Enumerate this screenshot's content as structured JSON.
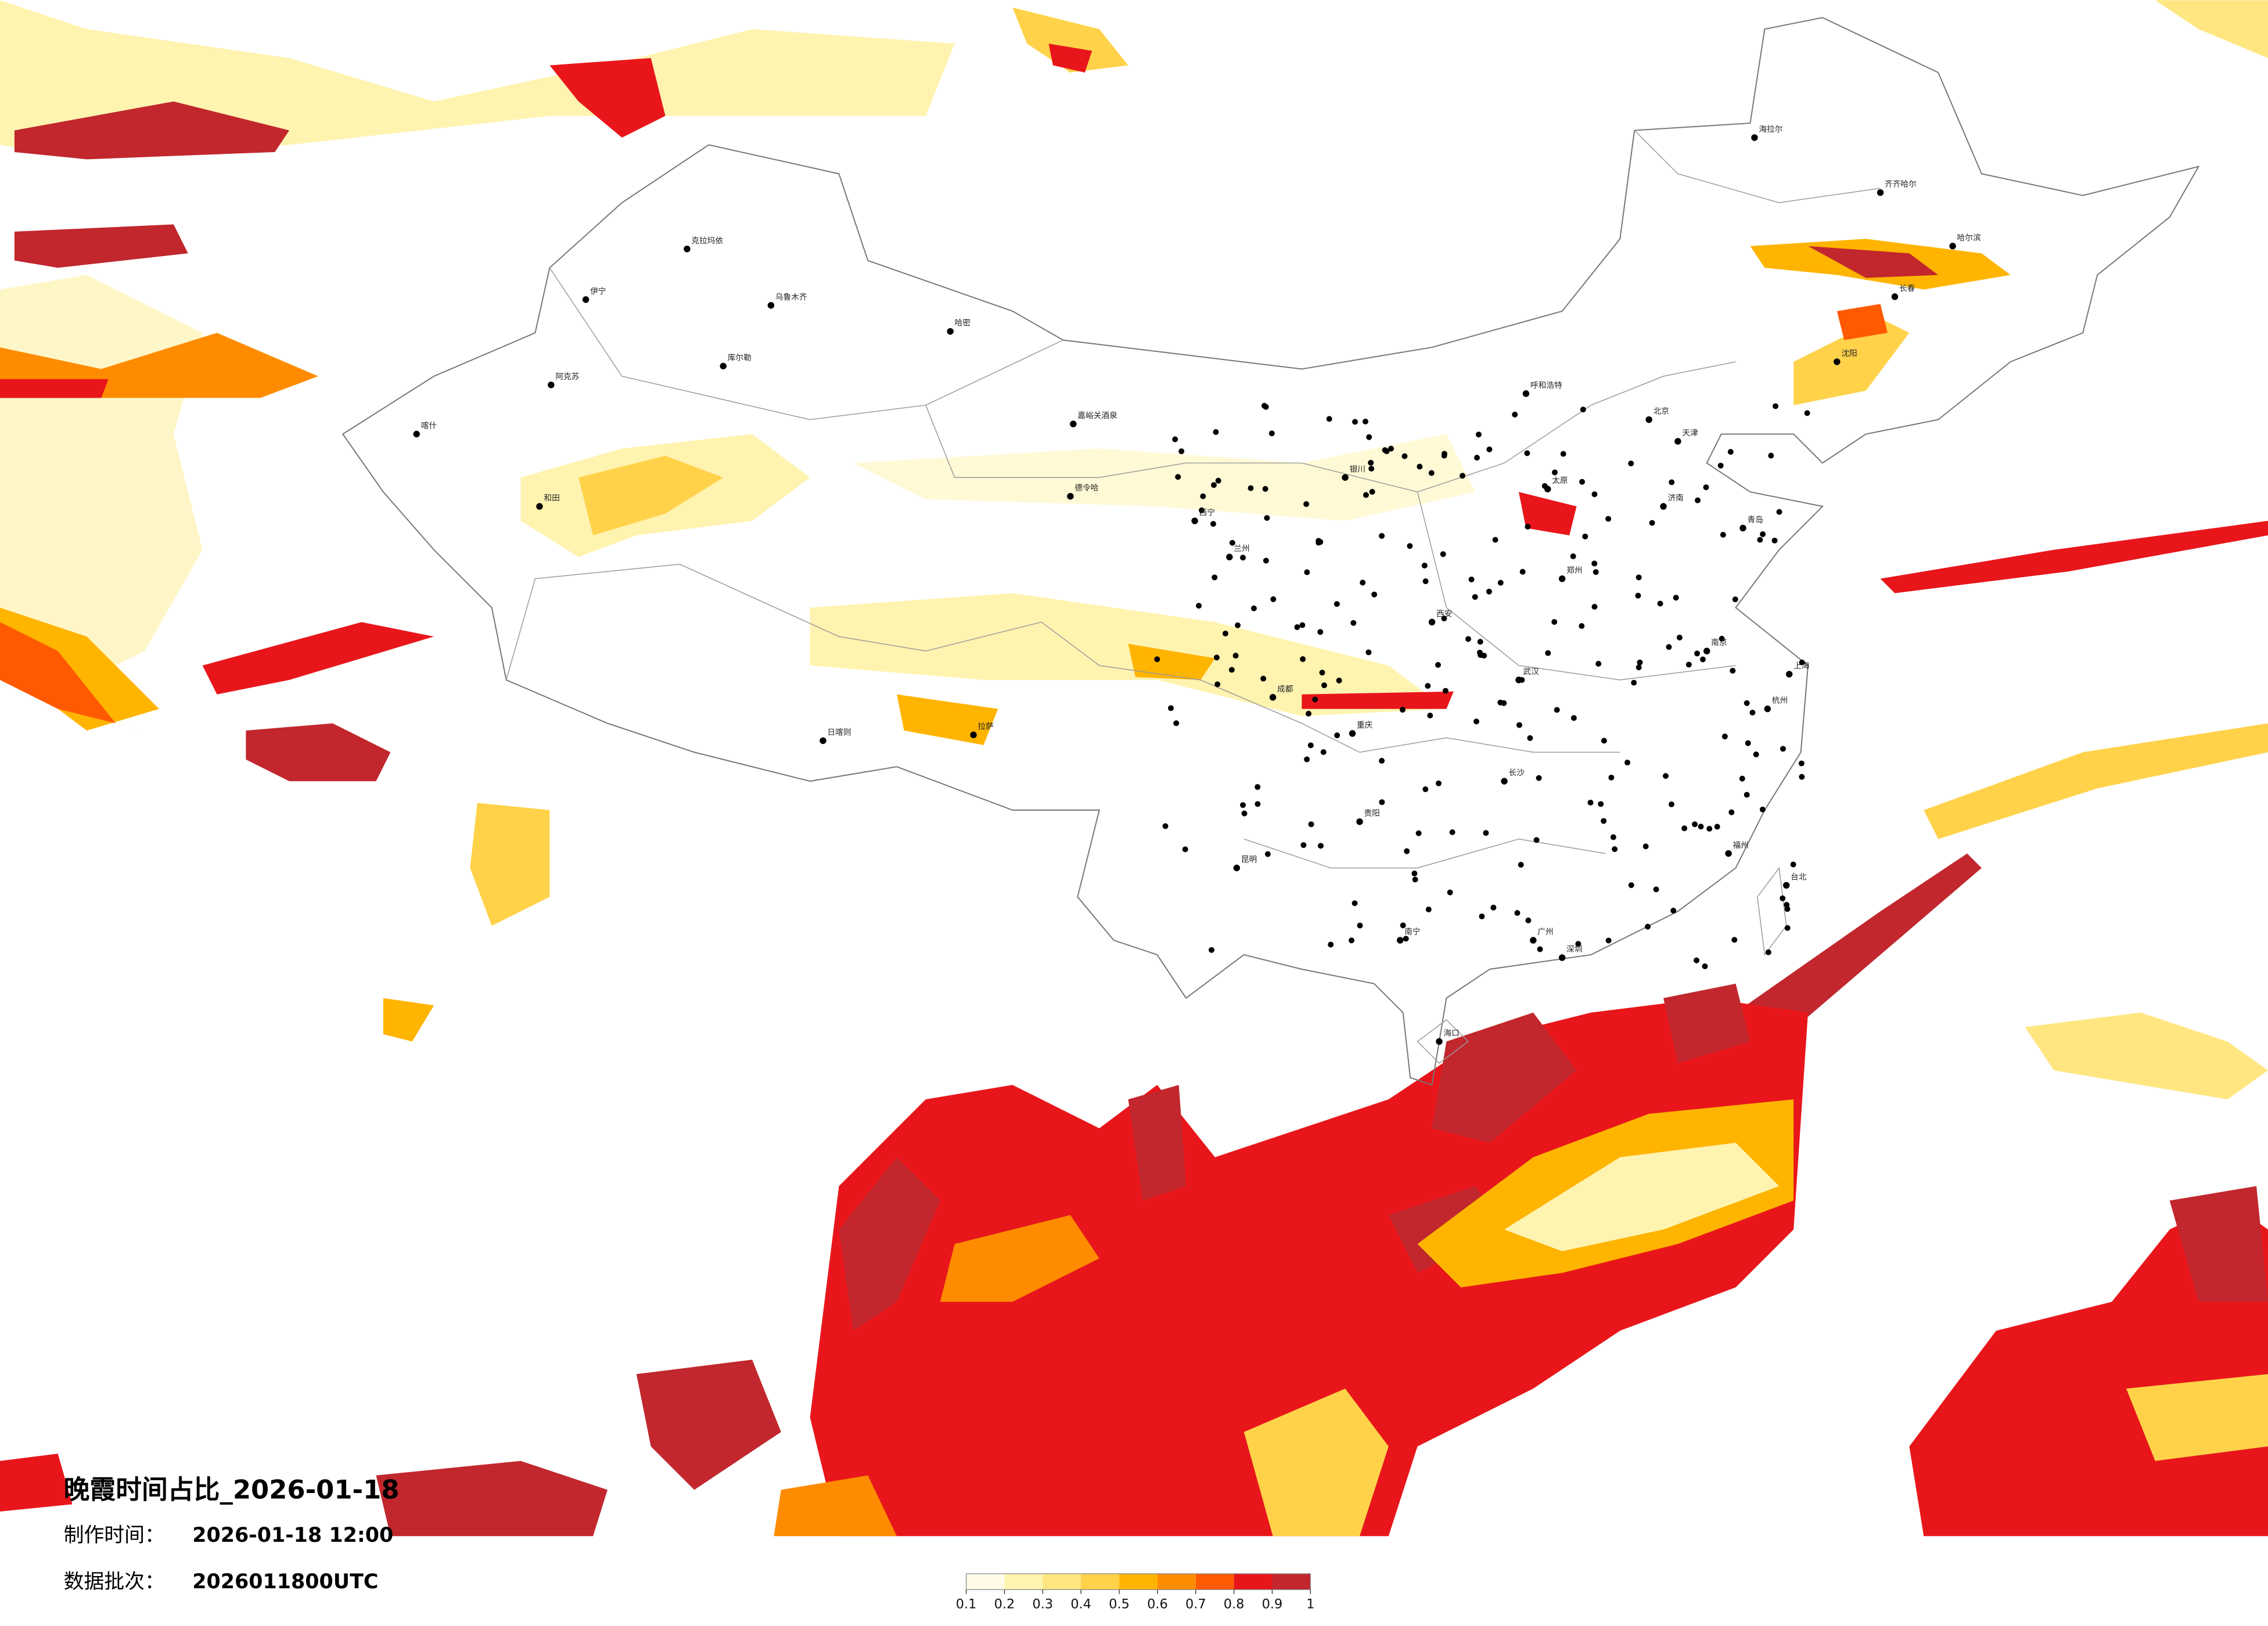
{
  "title": "晚霞时间占比_2026-01-18",
  "made_label": "制作时间：",
  "made_value": "2026-01-18 12:00",
  "batch_label": "数据批次：",
  "batch_value": "2026011800UTC",
  "colorbar": {
    "ticks": [
      0.1,
      0.2,
      0.3,
      0.4,
      0.5,
      0.6,
      0.7,
      0.8,
      0.9,
      1
    ],
    "colors": [
      "#fffbe6",
      "#fff3b0",
      "#ffe680",
      "#ffd24a",
      "#ffb400",
      "#ff8c00",
      "#ff5a00",
      "#e8161b",
      "#c1272d"
    ]
  },
  "cities": [
    "克拉玛依",
    "伊宁",
    "乌鲁木齐",
    "哈密",
    "库尔勒",
    "阿克苏",
    "喀什",
    "和田",
    "嘉峪关酒泉",
    "德令哈",
    "西宁",
    "兰州",
    "拉萨",
    "日喀则",
    "成都",
    "重庆",
    "昆明",
    "贵阳",
    "南宁",
    "广州",
    "深圳",
    "海口",
    "台北",
    "武汉",
    "长沙",
    "南京",
    "上海",
    "杭州",
    "福州",
    "北京",
    "天津",
    "济南",
    "青岛",
    "郑州",
    "西安",
    "太原",
    "呼和浩特",
    "沈阳",
    "长春",
    "哈尔滨",
    "齐齐哈尔",
    "海拉尔",
    "银川"
  ]
}
